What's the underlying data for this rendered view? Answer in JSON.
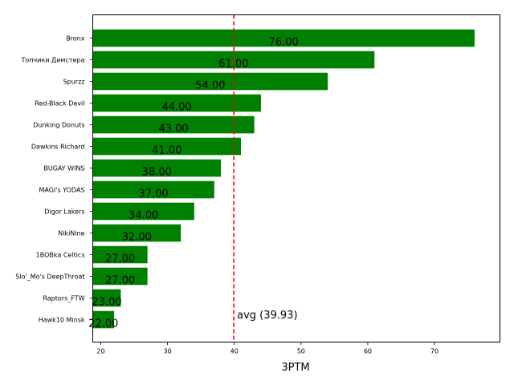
{
  "chart_data": {
    "type": "bar",
    "orientation": "horizontal",
    "categories": [
      "Bronx",
      "Топчики Димстера",
      "Spurzz",
      "Red-Black Devil",
      "Dunking Donuts",
      "Dawkins Richard",
      "BUGAY WINS",
      "MAGI's YODAS",
      "Digor Lakers",
      "NikiNine",
      "1BOBka Celtics",
      "Slo'_Mo's DeepThroat",
      "Raptors_FTW",
      "Hawk10 Minsk"
    ],
    "values": [
      76,
      61,
      54,
      44,
      43,
      41,
      38,
      37,
      34,
      32,
      27,
      27,
      23,
      22
    ],
    "value_labels": [
      "76.00",
      "61.00",
      "54.00",
      "44.00",
      "43.00",
      "41.00",
      "38.00",
      "37.00",
      "34.00",
      "32.00",
      "27.00",
      "27.00",
      "23.00",
      "22.00"
    ],
    "xlabel": "3PTM",
    "ylabel": "",
    "title": "",
    "xlim": [
      18.8,
      79.8
    ],
    "xticks": [
      20,
      30,
      40,
      50,
      60,
      70
    ],
    "average": 39.93,
    "average_label": "avg (39.93)",
    "grid": false,
    "colors": {
      "bar": "#008000",
      "average_line": "#ff0000",
      "axis": "#000000"
    }
  }
}
